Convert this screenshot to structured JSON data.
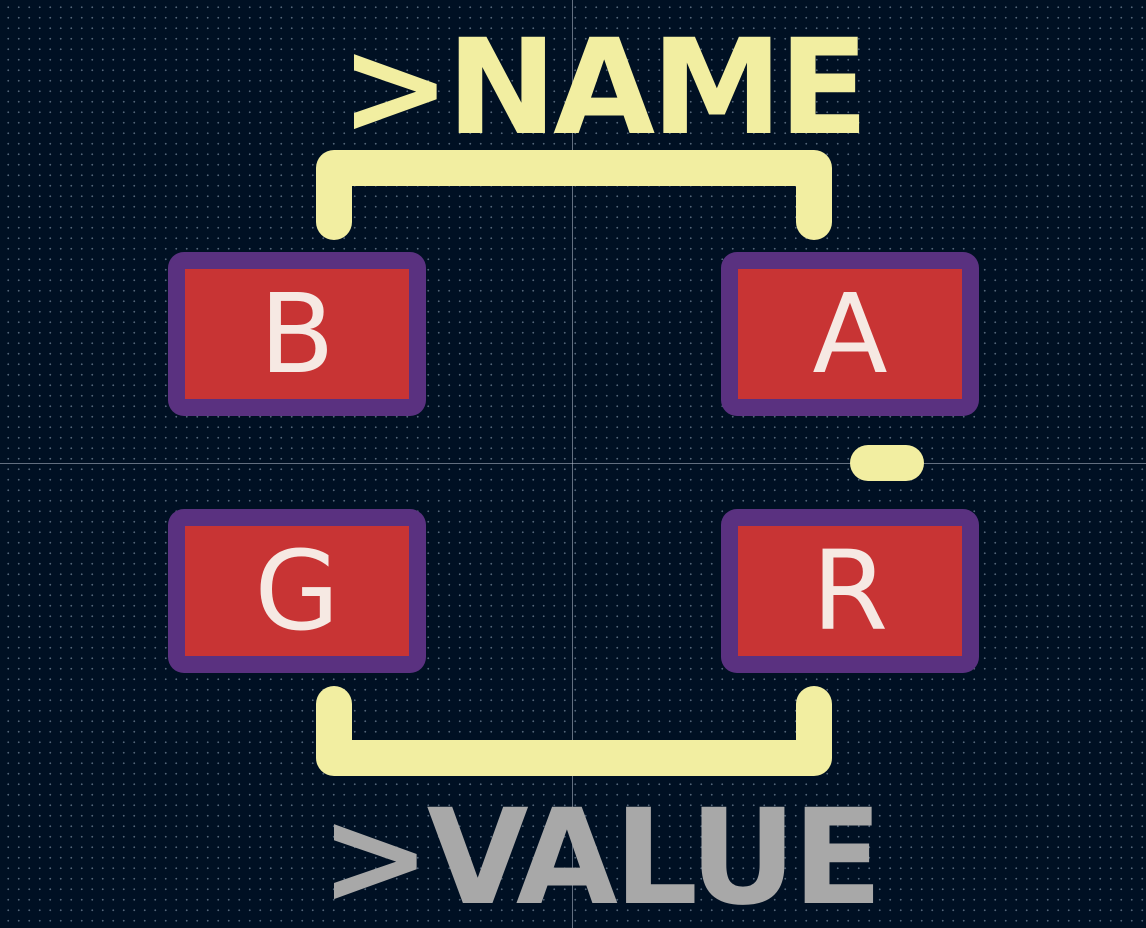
{
  "footprint": {
    "name_field": ">NAME",
    "value_field": ">VALUE",
    "pads": [
      {
        "label": "B"
      },
      {
        "label": "A"
      },
      {
        "label": "G"
      },
      {
        "label": "R"
      }
    ]
  },
  "colors": {
    "background": "#001023",
    "silkscreen": "#f2eea1",
    "value_text": "#a8a8a8",
    "pad_copper": "#c83434",
    "pad_mask": "#5a3180",
    "pad_text": "#f6e9e3",
    "grid_dots": "#96aabe"
  }
}
